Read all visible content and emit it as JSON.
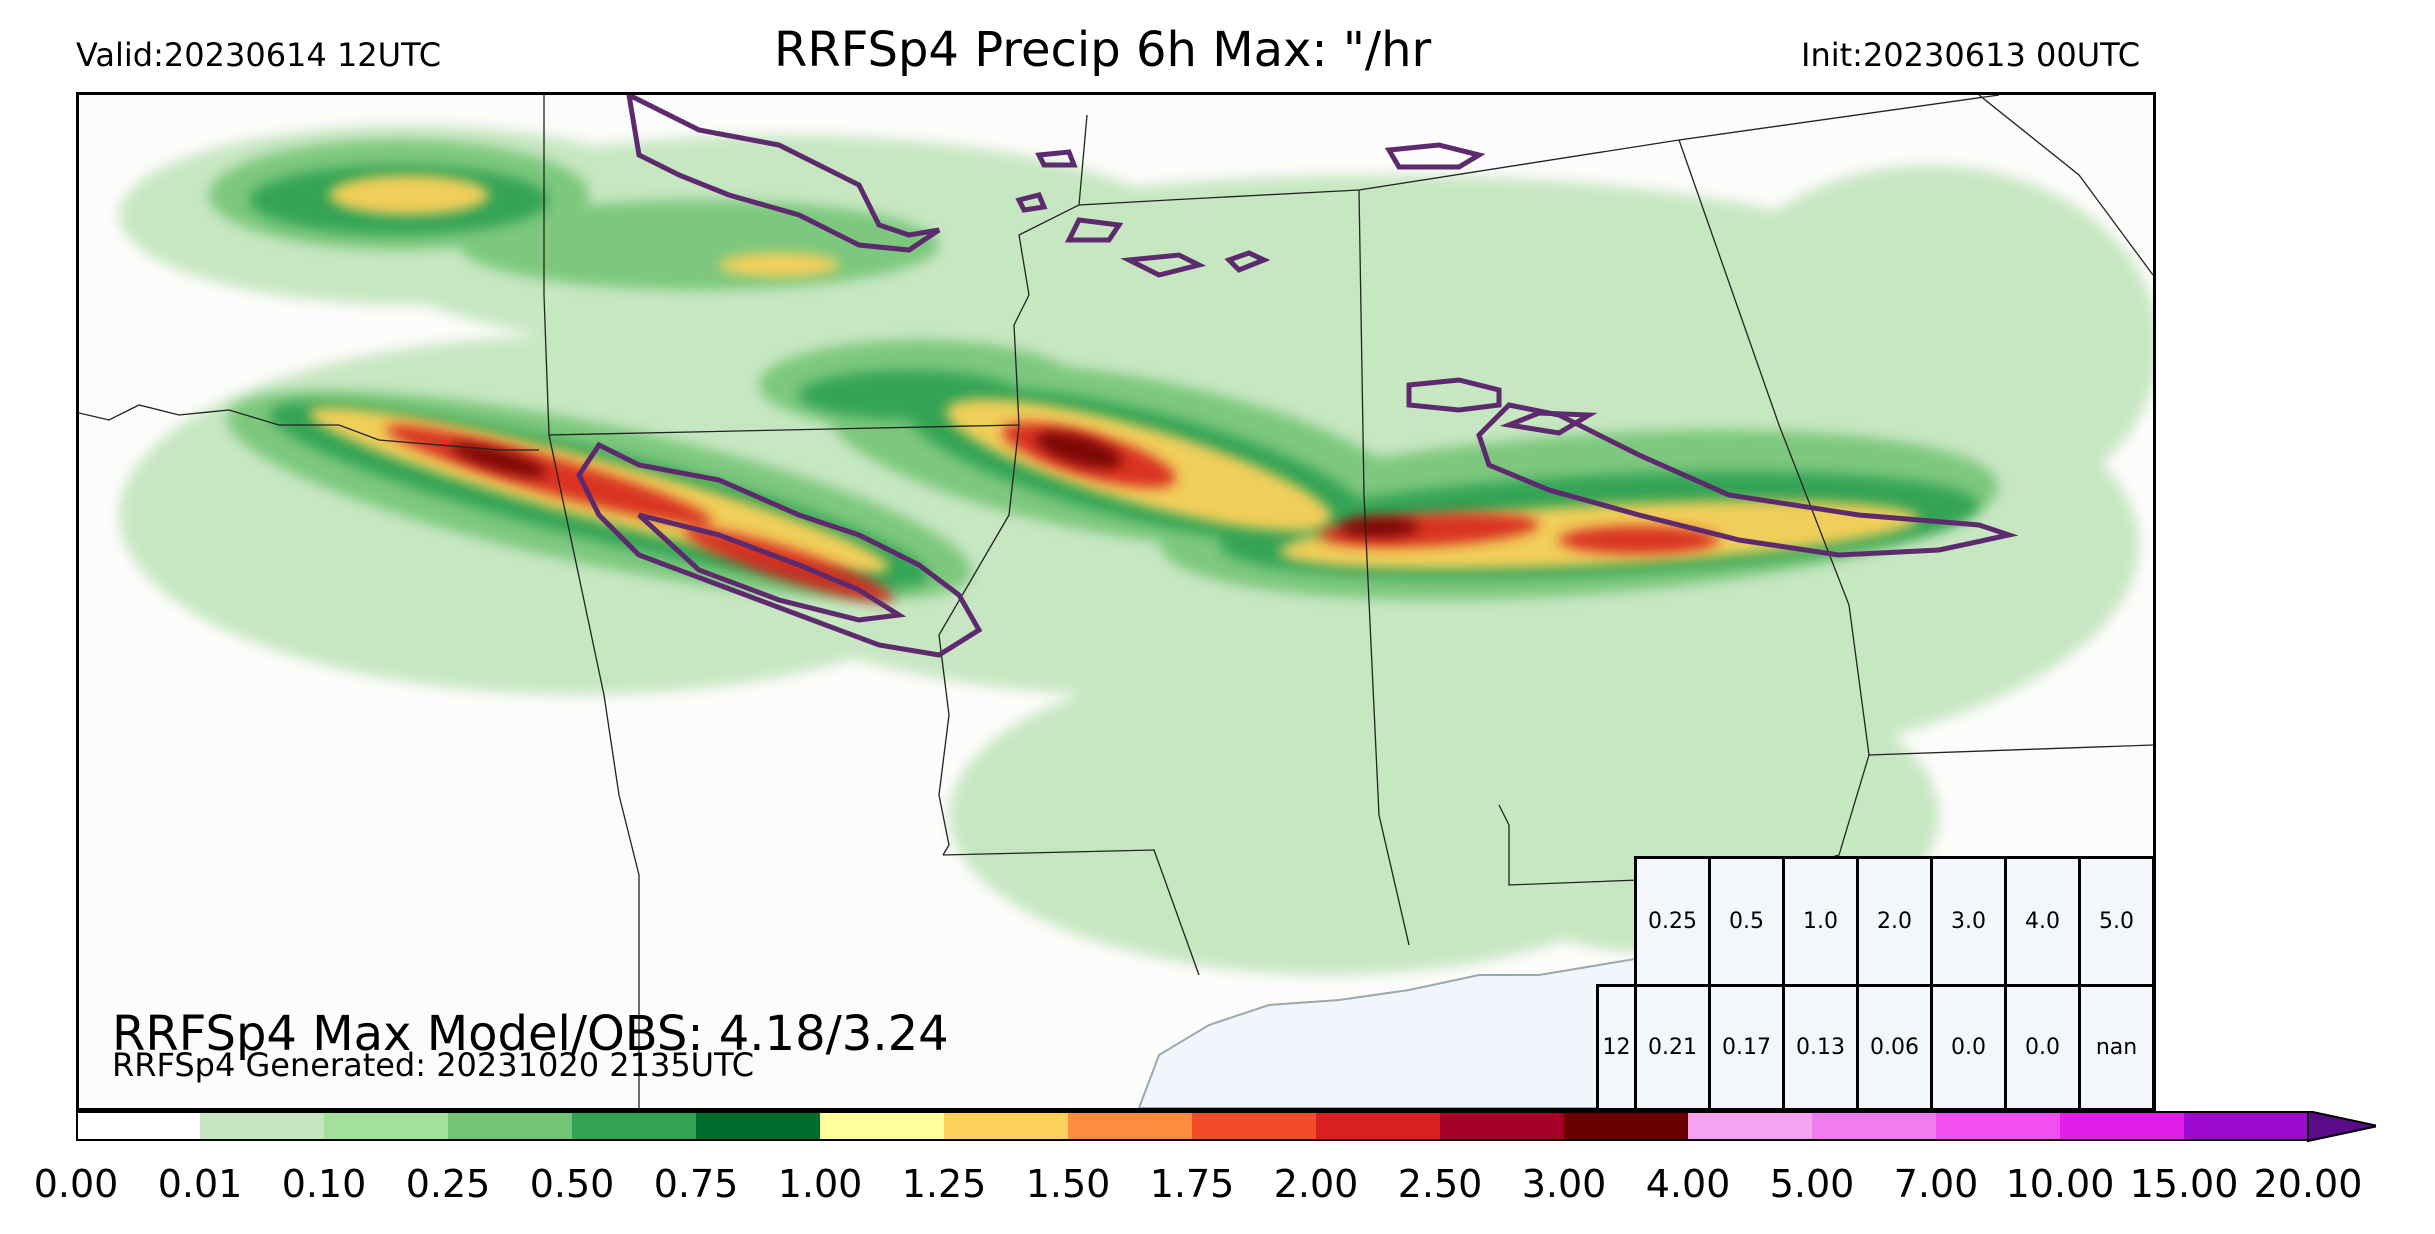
{
  "header": {
    "valid": "Valid:20230614 12UTC",
    "title": "RRFSp4 Precip 6h Max: \"/hr",
    "init": "Init:20230613 00UTC"
  },
  "stats": {
    "main": "RRFSp4 Max Model/OBS: 4.18/3.24",
    "generated": "RRFSp4 Generated: 20231020 2135UTC"
  },
  "threshold_table": {
    "thresholds": [
      "0.25",
      "0.5",
      "1.0",
      "2.0",
      "3.0",
      "4.0",
      "5.0"
    ],
    "row_label": "12",
    "values": [
      "0.21",
      "0.17",
      "0.13",
      "0.06",
      "0.0",
      "0.0",
      "nan"
    ]
  },
  "colorbar": {
    "ticks": [
      "0.00",
      "0.01",
      "0.10",
      "0.25",
      "0.50",
      "0.75",
      "1.00",
      "1.25",
      "1.50",
      "1.75",
      "2.00",
      "2.50",
      "3.00",
      "4.00",
      "5.00",
      "7.00",
      "10.00",
      "15.00",
      "20.00"
    ],
    "colors": [
      "#ffffff",
      "#c5e6c0",
      "#a2e09b",
      "#74c476",
      "#31a354",
      "#006d2c",
      "#ffff99",
      "#fcd05a",
      "#fd8d3c",
      "#f44b2c",
      "#d7201f",
      "#a50026",
      "#6b0000",
      "#f5a3f0",
      "#f07cf0",
      "#f050f0",
      "#e21ee9",
      "#9b0acd"
    ],
    "extend_color": "#5b0a8a"
  },
  "map": {
    "obs_contour_color": "#5e2a6e",
    "ocean_color": "#f2f5fb",
    "border_color": "#222222"
  }
}
